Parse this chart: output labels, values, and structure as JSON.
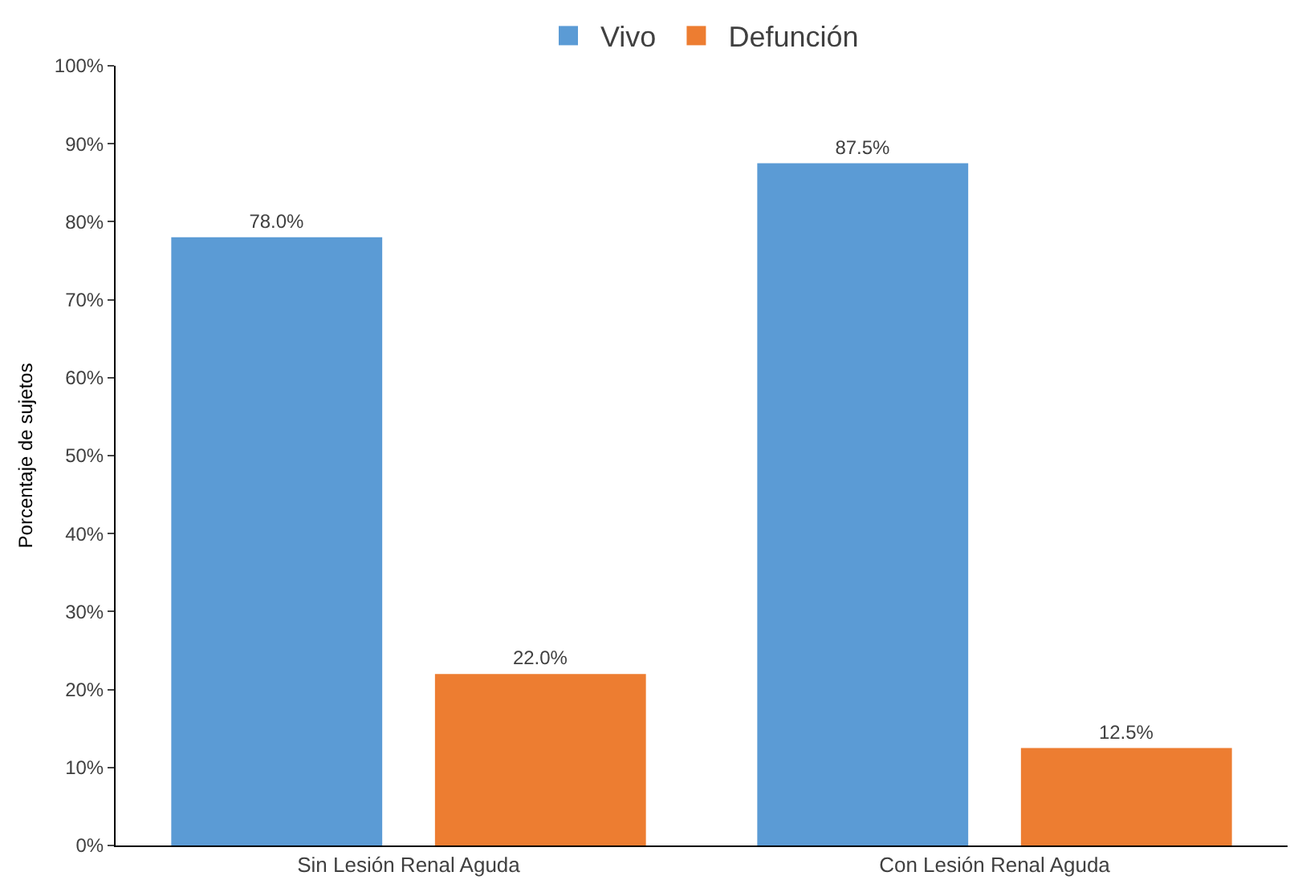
{
  "chart_data": {
    "type": "bar",
    "ylabel": "Porcentaje de sujetos",
    "categories": [
      "Sin Lesión Renal Aguda",
      "Con Lesión Renal Aguda"
    ],
    "series": [
      {
        "name": "Vivo",
        "color": "#5b9bd5",
        "values": [
          78.0,
          87.5
        ],
        "value_labels": [
          "78.0%",
          "87.5%"
        ]
      },
      {
        "name": "Defunción",
        "color": "#ed7d31",
        "values": [
          22.0,
          12.5
        ],
        "value_labels": [
          "22.0%",
          "12.5%"
        ]
      }
    ],
    "ylim": [
      0,
      100
    ],
    "yticks": [
      {
        "value": 0,
        "label": "0%"
      },
      {
        "value": 10,
        "label": "10%"
      },
      {
        "value": 20,
        "label": "20%"
      },
      {
        "value": 30,
        "label": "30%"
      },
      {
        "value": 40,
        "label": "40%"
      },
      {
        "value": 50,
        "label": "50%"
      },
      {
        "value": 60,
        "label": "60%"
      },
      {
        "value": 70,
        "label": "70%"
      },
      {
        "value": 80,
        "label": "80%"
      },
      {
        "value": 90,
        "label": "90%"
      },
      {
        "value": 100,
        "label": "100%"
      }
    ],
    "legend": "top"
  }
}
